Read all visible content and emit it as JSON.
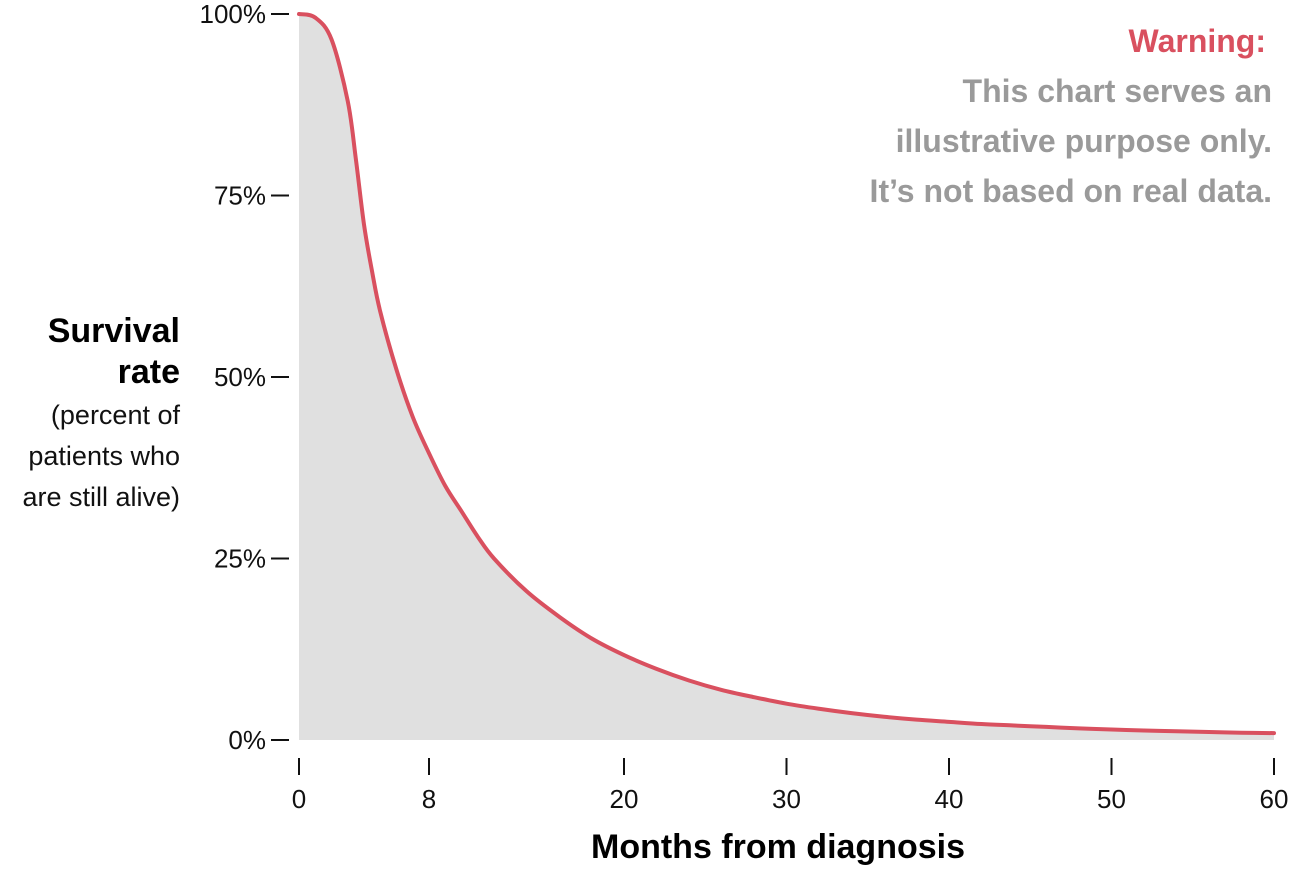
{
  "colors": {
    "line": "#d9505f",
    "area": "#e0e0e0",
    "warning_heading": "#d9505f",
    "warning_text": "#9a9a9a",
    "text": "#111111"
  },
  "annotation": {
    "heading": "Warning:",
    "lines": [
      "This chart serves an",
      "illustrative purpose only.",
      "It’s not based on real data."
    ]
  },
  "chart_data": {
    "type": "area",
    "title": "",
    "xlabel": "Months from diagnosis",
    "ylabel_lines": [
      "Survival",
      "rate"
    ],
    "ylabel_note_lines": [
      "(percent of",
      "patients who",
      "are still alive)"
    ],
    "xlim": [
      0,
      60
    ],
    "ylim": [
      0,
      100
    ],
    "x_ticks": [
      0,
      8,
      20,
      30,
      40,
      50,
      60
    ],
    "x_tick_labels": [
      "0",
      "8",
      "20",
      "30",
      "40",
      "50",
      "60"
    ],
    "y_ticks": [
      0,
      25,
      50,
      75,
      100
    ],
    "y_tick_labels": [
      "0%",
      "25%",
      "50%",
      "75%",
      "100%"
    ],
    "grid": false,
    "legend": "none",
    "series": [
      {
        "x": [
          0,
          1,
          2,
          3,
          3.5,
          4,
          4.5,
          5,
          6,
          7,
          8,
          9,
          10,
          11,
          12,
          14,
          16,
          18,
          20,
          22,
          24,
          26,
          28,
          30,
          32,
          34,
          36,
          38,
          40,
          42,
          44,
          46,
          48,
          50,
          52,
          54,
          56,
          58,
          60
        ],
        "y": [
          100,
          99.5,
          96.5,
          88,
          80,
          71,
          64.5,
          59,
          51,
          44.5,
          39.5,
          35,
          31.5,
          28,
          25,
          20.5,
          17,
          14,
          11.7,
          9.8,
          8.2,
          6.9,
          5.9,
          5,
          4.3,
          3.7,
          3.2,
          2.8,
          2.5,
          2.2,
          2,
          1.8,
          1.6,
          1.45,
          1.3,
          1.2,
          1.1,
          1,
          0.95
        ]
      }
    ]
  }
}
